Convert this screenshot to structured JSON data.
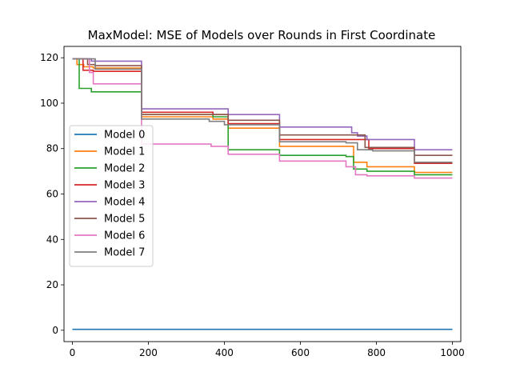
{
  "chart_data": {
    "type": "line",
    "title": "MaxModel: MSE of Models over Rounds in First Coordinate",
    "xlabel": "",
    "ylabel": "",
    "xlim": [
      -22,
      1022
    ],
    "ylim": [
      -5,
      125
    ],
    "xticks": [
      0,
      200,
      400,
      600,
      800,
      1000
    ],
    "yticks": [
      0,
      20,
      40,
      60,
      80,
      100,
      120
    ],
    "grid": false,
    "legend_position": "center-left",
    "series": [
      {
        "name": "Model 0",
        "color": "#1f77b4",
        "x": [
          0,
          1000
        ],
        "y": [
          0.4,
          0.4
        ]
      },
      {
        "name": "Model 1",
        "color": "#ff7f0e",
        "x": [
          0,
          12,
          30,
          55,
          180,
          182,
          370,
          410,
          540,
          545,
          725,
          740,
          775,
          900,
          1000
        ],
        "y": [
          119.5,
          117,
          116,
          115.5,
          115.5,
          94,
          93,
          89,
          89,
          81,
          81,
          74,
          72,
          69.5,
          69.5
        ]
      },
      {
        "name": "Model 2",
        "color": "#2ca02c",
        "x": [
          0,
          18,
          50,
          180,
          182,
          370,
          410,
          540,
          545,
          720,
          740,
          775,
          900,
          1000
        ],
        "y": [
          119.5,
          106.5,
          105,
          105,
          95,
          94,
          79.5,
          79.5,
          77,
          76.5,
          71,
          70,
          68.5,
          68.5
        ]
      },
      {
        "name": "Model 3",
        "color": "#d62728",
        "x": [
          0,
          28,
          55,
          180,
          182,
          370,
          410,
          540,
          545,
          720,
          780,
          900,
          1000
        ],
        "y": [
          119.5,
          114.5,
          114,
          114,
          96,
          95,
          91,
          91,
          84,
          84,
          80,
          73.5,
          73.5
        ]
      },
      {
        "name": "Model 4",
        "color": "#9467bd",
        "x": [
          0,
          50,
          180,
          182,
          410,
          540,
          545,
          720,
          735,
          750,
          775,
          900,
          1000
        ],
        "y": [
          119.5,
          118.5,
          118.5,
          97.5,
          95,
          95,
          89.5,
          89.5,
          87,
          85.5,
          84,
          79.5,
          79.5
        ]
      },
      {
        "name": "Model 5",
        "color": "#8c564b",
        "x": [
          0,
          40,
          60,
          180,
          182,
          410,
          540,
          545,
          720,
          770,
          900,
          1000
        ],
        "y": [
          119.5,
          117,
          116.5,
          116.5,
          95,
          92.5,
          92.5,
          86,
          86,
          80.5,
          77,
          77
        ]
      },
      {
        "name": "Model 6",
        "color": "#e377c2",
        "x": [
          0,
          45,
          55,
          180,
          182,
          365,
          410,
          540,
          545,
          720,
          745,
          775,
          900,
          1000
        ],
        "y": [
          119.5,
          113.5,
          108.5,
          108.5,
          82,
          81,
          77.5,
          77.5,
          74.5,
          72,
          68.5,
          68,
          67,
          67
        ]
      },
      {
        "name": "Model 7",
        "color": "#7f7f7f",
        "x": [
          0,
          60,
          180,
          182,
          360,
          400,
          540,
          545,
          720,
          750,
          790,
          900,
          1000
        ],
        "y": [
          119.5,
          115,
          115,
          93,
          92,
          90.5,
          90.5,
          83,
          82.5,
          79.5,
          79,
          74,
          74
        ]
      }
    ]
  }
}
